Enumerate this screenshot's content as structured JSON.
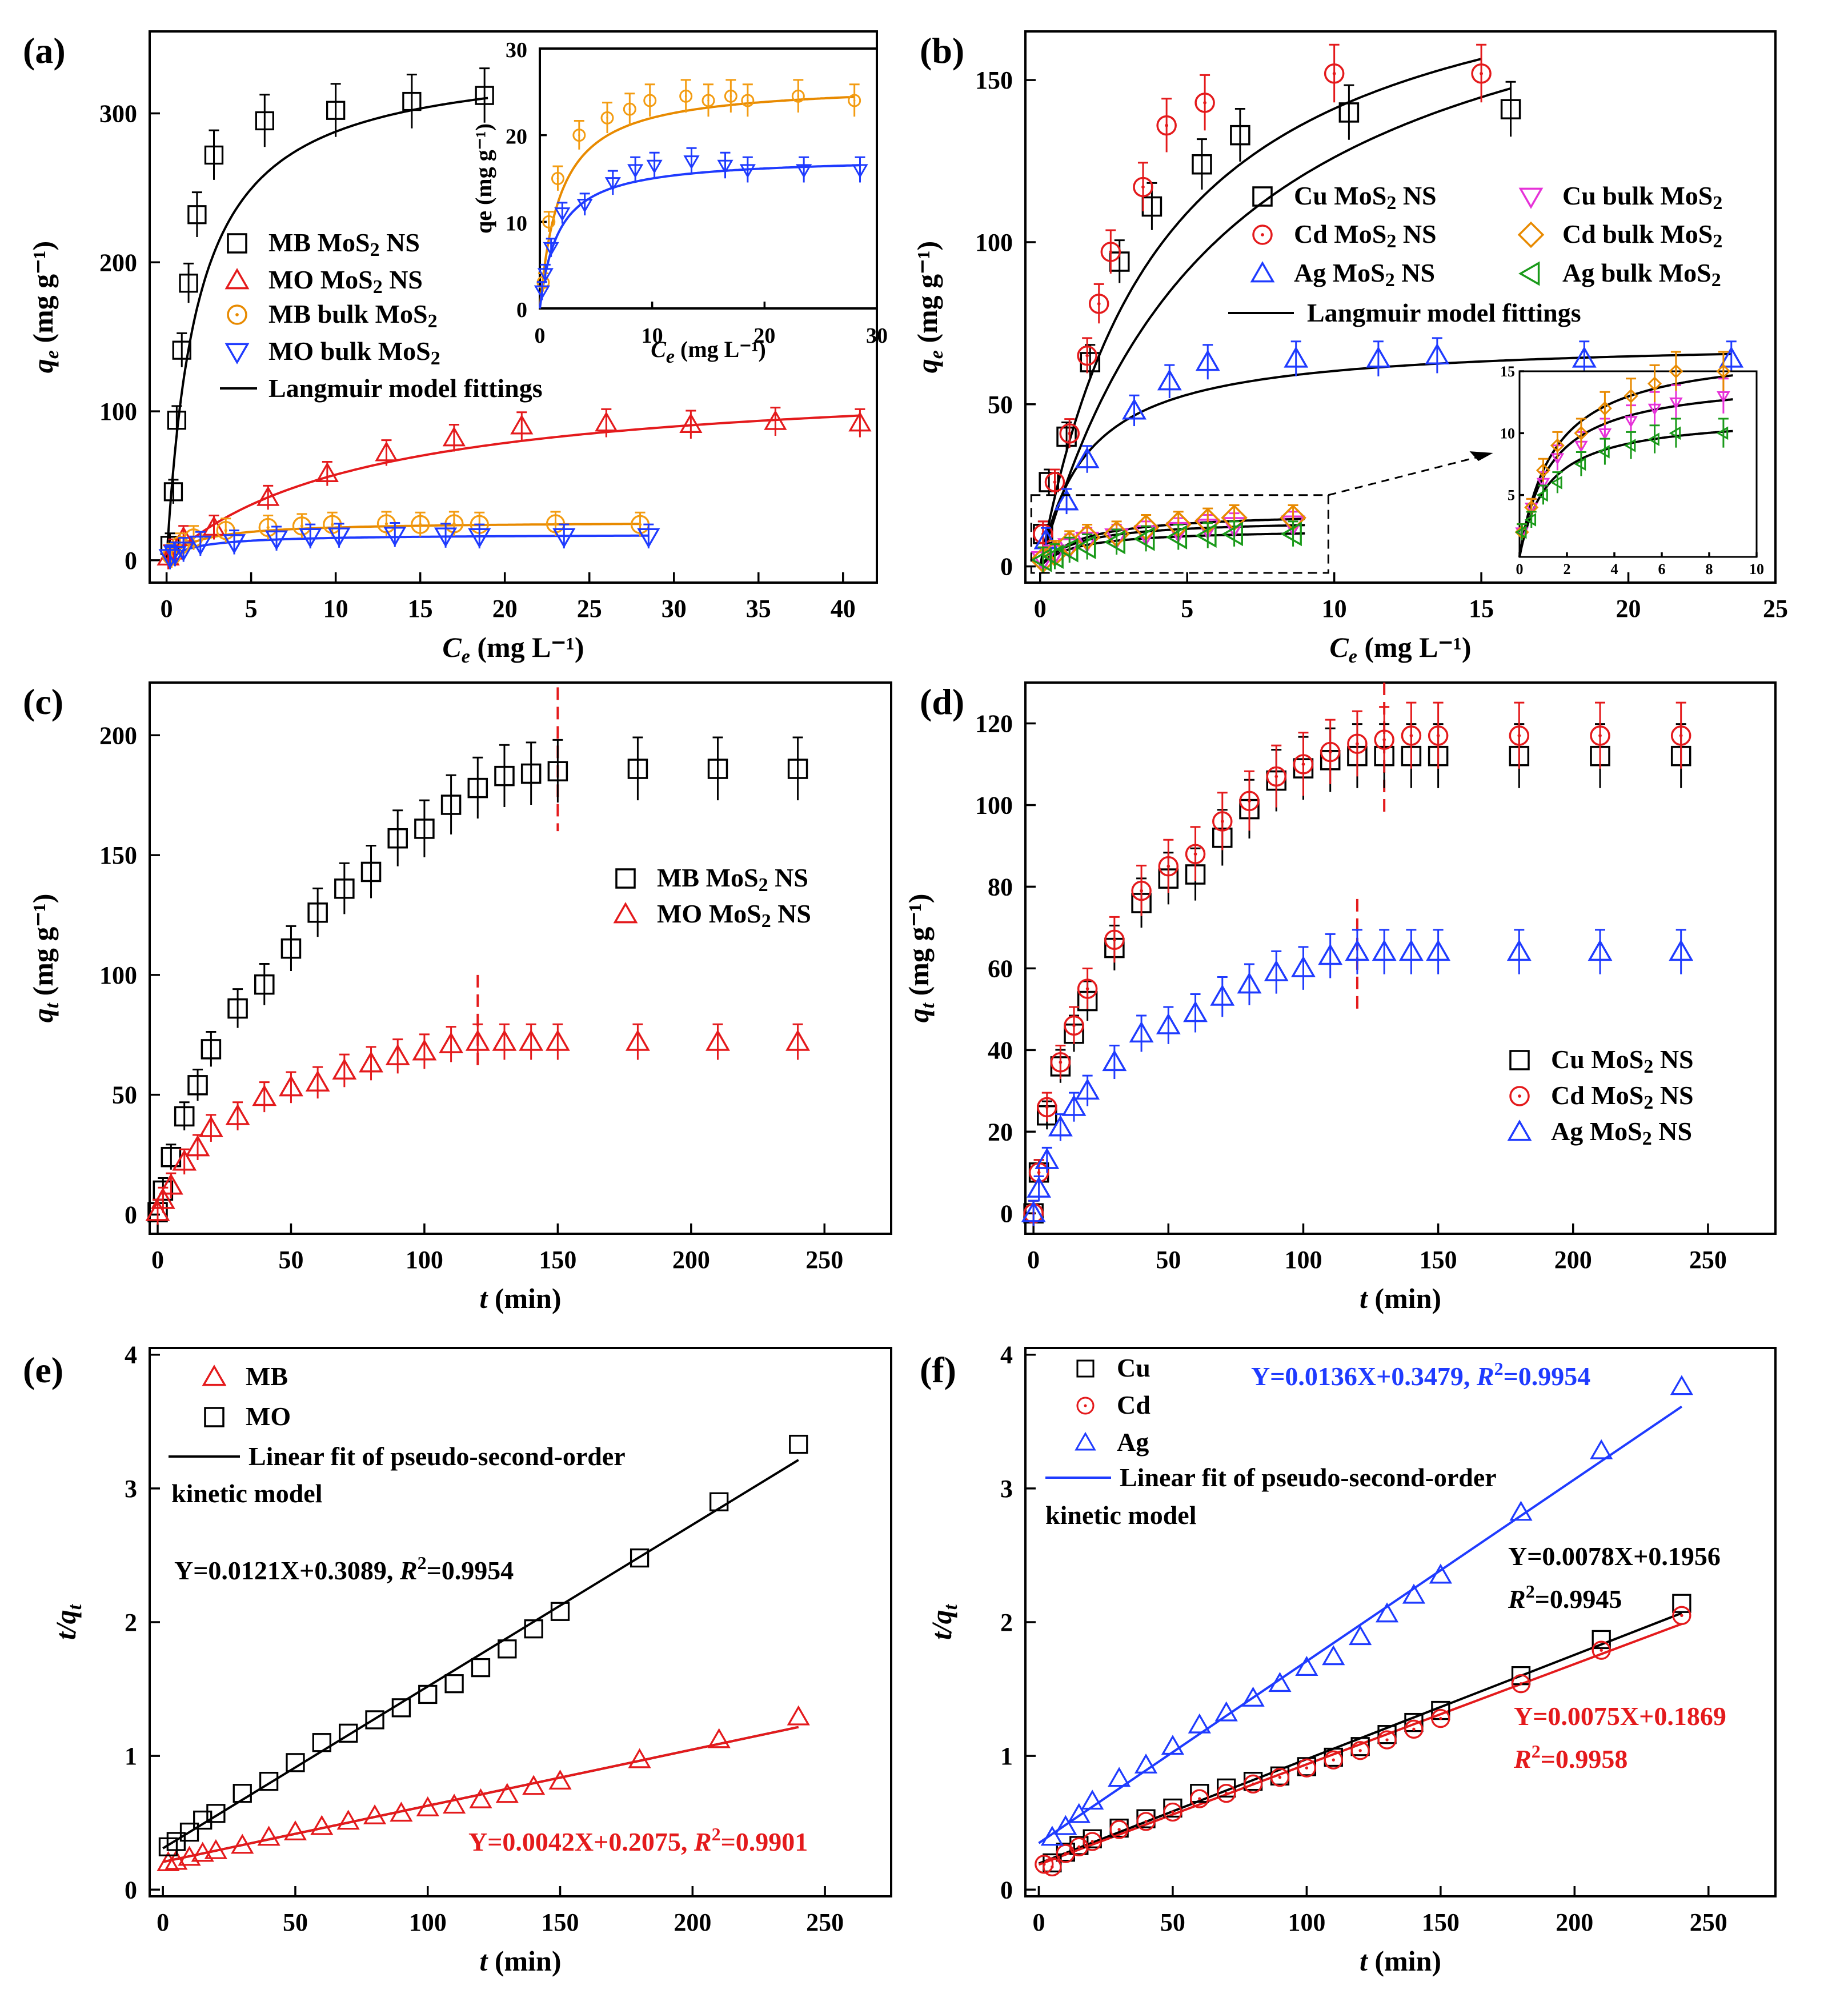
{
  "chart_data": [
    {
      "panel": "(a)",
      "type": "scatter",
      "xlabel": "Ce (mg L-1)",
      "ylabel": "qe (mg g-1)",
      "xlim": [
        -1,
        42
      ],
      "ylim": [
        -15,
        355
      ],
      "xticks": [
        0,
        5,
        10,
        15,
        20,
        25,
        30,
        35,
        40
      ],
      "yticks": [
        0,
        100,
        200,
        300
      ],
      "series": [
        {
          "name": "MB MoS2 NS",
          "marker": "square",
          "color": "#000000",
          "x": [
            0.2,
            0.4,
            0.6,
            0.9,
            1.3,
            1.8,
            2.8,
            5.8,
            10,
            14.5,
            18.8
          ],
          "y": [
            10,
            46,
            94,
            141,
            186,
            232,
            272,
            295,
            302,
            308,
            312
          ]
        },
        {
          "name": "MO MoS2 NS",
          "marker": "triangle",
          "color": "#e41a1c",
          "x": [
            0.1,
            0.4,
            1,
            2.8,
            6,
            9.5,
            13,
            17,
            21,
            26,
            31,
            36,
            41
          ],
          "y": [
            2,
            6,
            15,
            22,
            42,
            58,
            72,
            82,
            90,
            92,
            91,
            93,
            92
          ]
        },
        {
          "name": "MB bulk MoS2",
          "marker": "circle",
          "color": "#f39c12",
          "x": [
            0.3,
            0.8,
            1.6,
            3.5,
            6,
            8,
            9.8,
            13,
            15,
            17,
            18.5,
            23,
            28
          ],
          "y": [
            3,
            10,
            15,
            20,
            22,
            23,
            24,
            24.5,
            24,
            24.5,
            24,
            24.5,
            24
          ]
        },
        {
          "name": "MO bulk MoS2",
          "marker": "triangle-down",
          "color": "#1f3bff",
          "x": [
            0.2,
            0.5,
            1,
            2,
            4,
            6.5,
            8.5,
            10.2,
            13.5,
            16.5,
            18.5,
            23.5,
            28.5
          ],
          "y": [
            2,
            4,
            7,
            11,
            12,
            14.5,
            16,
            16.5,
            17,
            16.5,
            16,
            16,
            16
          ]
        }
      ],
      "fit_label": "Langmuir model fittings",
      "inset": {
        "xlabel": "Ce (mg L-1)",
        "ylabel": "qe (mg g-1)",
        "xlim": [
          0,
          30
        ],
        "ylim": [
          0,
          30
        ],
        "xticks": [
          0,
          10,
          20,
          30
        ],
        "yticks": [
          0,
          10,
          20,
          30
        ]
      }
    },
    {
      "panel": "(b)",
      "type": "scatter",
      "xlabel": "Ce (mg L-1)",
      "ylabel": "qe (mg g-1)",
      "xlim": [
        -0.5,
        25
      ],
      "ylim": [
        -5,
        165
      ],
      "xticks": [
        0,
        5,
        10,
        15,
        20,
        25
      ],
      "yticks": [
        0,
        50,
        100,
        150
      ],
      "series": [
        {
          "name": "Cu MoS2 NS",
          "marker": "square",
          "color": "#000000",
          "x": [
            0.1,
            0.3,
            0.9,
            1.7,
            2.7,
            3.8,
            5.5,
            6.8,
            10.5,
            16
          ],
          "y": [
            10,
            26,
            40,
            63,
            94,
            111,
            124,
            133,
            140,
            141
          ]
        },
        {
          "name": "Cd MoS2 NS",
          "marker": "circle",
          "color": "#e41a1c",
          "x": [
            0.1,
            0.5,
            1,
            1.6,
            2,
            2.4,
            3.5,
            4.3,
            5.6,
            10,
            15
          ],
          "y": [
            10,
            26,
            41,
            65,
            81,
            97,
            117,
            136,
            143,
            152,
            152
          ]
        },
        {
          "name": "Ag MoS2 NS",
          "marker": "triangle",
          "color": "#1f3bff",
          "x": [
            0.2,
            0.9,
            1.6,
            3.2,
            4.4,
            5.7,
            8.7,
            11.5,
            13.5,
            18.5,
            23.5
          ],
          "y": [
            8,
            20,
            33,
            48,
            57,
            63,
            64,
            64,
            65,
            64,
            64
          ]
        },
        {
          "name": "Cu bulk MoS2",
          "marker": "triangle-down",
          "color": "#e632d8",
          "x": [
            0.1,
            0.5,
            1,
            1.6,
            2.6,
            3.6,
            4.7,
            5.7,
            6.6,
            8.6
          ],
          "y": [
            2,
            4,
            6,
            8,
            9,
            10,
            11,
            12,
            12.5,
            13
          ]
        },
        {
          "name": "Cd bulk MoS2",
          "marker": "diamond",
          "color": "#e88a00",
          "x": [
            0.1,
            0.5,
            1,
            1.6,
            2.6,
            3.6,
            4.7,
            5.7,
            6.6,
            8.6
          ],
          "y": [
            2,
            4,
            7,
            9,
            10,
            12,
            13,
            14,
            15,
            15
          ]
        },
        {
          "name": "Ag bulk MoS2",
          "marker": "triangle-left",
          "color": "#1a9a1a",
          "x": [
            0.1,
            0.5,
            1,
            1.6,
            2.6,
            3.6,
            4.7,
            5.7,
            6.6,
            8.6
          ],
          "y": [
            2,
            3,
            5,
            6,
            7.5,
            8.5,
            9,
            9.5,
            10,
            10
          ]
        }
      ],
      "fit_label": "Langmuir model fittings",
      "inset": {
        "xlim": [
          0,
          10
        ],
        "ylim": [
          0,
          15
        ],
        "xticks": [
          0,
          2,
          4,
          6,
          8,
          10
        ],
        "yticks": [
          5,
          10,
          15
        ]
      }
    },
    {
      "panel": "(c)",
      "type": "scatter",
      "xlabel": "t (min)",
      "ylabel": "qt (mg g-1)",
      "xlim": [
        -3,
        275
      ],
      "ylim": [
        -8,
        222
      ],
      "xticks": [
        0,
        50,
        100,
        150,
        200,
        250
      ],
      "yticks": [
        0,
        50,
        100,
        150,
        200
      ],
      "series": [
        {
          "name": "MB MoS2 NS",
          "marker": "square",
          "color": "#000000",
          "x": [
            0,
            2,
            5,
            10,
            15,
            20,
            30,
            40,
            50,
            60,
            70,
            80,
            90,
            100,
            110,
            120,
            130,
            140,
            150,
            180,
            210,
            240
          ],
          "y": [
            1,
            10,
            24,
            41,
            54,
            69,
            86,
            96,
            111,
            126,
            136,
            143,
            157,
            161,
            171,
            178,
            183,
            184,
            185,
            186,
            186,
            186
          ]
        },
        {
          "name": "MO MoS2 NS",
          "marker": "triangle",
          "color": "#e41a1c",
          "x": [
            0,
            2,
            5,
            10,
            15,
            20,
            30,
            40,
            50,
            60,
            70,
            80,
            90,
            100,
            110,
            120,
            130,
            140,
            150,
            180,
            210,
            240
          ],
          "y": [
            1,
            6,
            12,
            22,
            28,
            36,
            41,
            49,
            53,
            55,
            60,
            63,
            66,
            68,
            71,
            72,
            72,
            72,
            72,
            72,
            72,
            72
          ]
        }
      ],
      "equilibrium_lines_x": [
        150,
        120
      ]
    },
    {
      "panel": "(d)",
      "type": "scatter",
      "xlabel": "t (min)",
      "ylabel": "qt (mg g-1)",
      "xlim": [
        -3,
        275
      ],
      "ylim": [
        -5,
        130
      ],
      "xticks": [
        0,
        50,
        100,
        150,
        200,
        250
      ],
      "yticks": [
        0,
        20,
        40,
        60,
        80,
        100,
        120
      ],
      "series": [
        {
          "name": "Cu MoS2 NS",
          "marker": "square",
          "color": "#000000",
          "x": [
            0,
            2,
            5,
            10,
            15,
            20,
            30,
            40,
            50,
            60,
            70,
            80,
            90,
            100,
            110,
            120,
            130,
            140,
            150,
            180,
            210,
            240
          ],
          "y": [
            0,
            10,
            24,
            36,
            44,
            52,
            65,
            76,
            82,
            83,
            92,
            99,
            106,
            109,
            111,
            112,
            112,
            112,
            112,
            112,
            112,
            112
          ]
        },
        {
          "name": "Cd MoS2 NS",
          "marker": "circle",
          "color": "#e41a1c",
          "x": [
            0,
            2,
            5,
            10,
            15,
            20,
            30,
            40,
            50,
            60,
            70,
            80,
            90,
            100,
            110,
            120,
            130,
            140,
            150,
            180,
            210,
            240
          ],
          "y": [
            0,
            10,
            26,
            37,
            46,
            55,
            67,
            79,
            85,
            88,
            96,
            101,
            107,
            110,
            113,
            115,
            116,
            117,
            117,
            117,
            117,
            117
          ]
        },
        {
          "name": "Ag MoS2 NS",
          "marker": "triangle",
          "color": "#1f3bff",
          "x": [
            0,
            2,
            5,
            10,
            15,
            20,
            30,
            40,
            50,
            60,
            70,
            80,
            90,
            100,
            110,
            120,
            130,
            140,
            150,
            180,
            210,
            240
          ],
          "y": [
            0,
            6,
            13,
            21,
            26,
            30,
            37,
            44,
            46,
            49,
            53,
            56,
            59,
            60,
            63,
            64,
            64,
            64,
            64,
            64,
            64,
            64
          ]
        }
      ],
      "equilibrium_lines_x": [
        130,
        120
      ]
    },
    {
      "panel": "(e)",
      "type": "scatter",
      "xlabel": "t (min)",
      "ylabel": "t/qt",
      "xlim": [
        -5,
        275
      ],
      "ylim": [
        -0.05,
        4.05
      ],
      "xticks": [
        0,
        50,
        100,
        150,
        200,
        250
      ],
      "yticks": [
        0,
        1,
        2,
        3,
        4
      ],
      "series": [
        {
          "name": "MB",
          "marker": "triangle",
          "color": "#e41a1c",
          "x": [
            2,
            5,
            10,
            15,
            20,
            30,
            40,
            50,
            60,
            70,
            80,
            90,
            100,
            110,
            120,
            130,
            140,
            150,
            180,
            210,
            240
          ],
          "y": [
            0.2,
            0.21,
            0.24,
            0.27,
            0.29,
            0.33,
            0.39,
            0.43,
            0.47,
            0.51,
            0.55,
            0.57,
            0.61,
            0.63,
            0.67,
            0.71,
            0.77,
            0.81,
            0.97,
            1.12,
            1.29
          ],
          "fit": {
            "slope": 0.0042,
            "intercept": 0.2075
          }
        },
        {
          "name": "MO",
          "marker": "square",
          "color": "#000000",
          "x": [
            2,
            5,
            10,
            15,
            20,
            30,
            40,
            50,
            60,
            70,
            80,
            90,
            100,
            110,
            120,
            130,
            140,
            150,
            180,
            210,
            240
          ],
          "y": [
            0.32,
            0.36,
            0.43,
            0.52,
            0.57,
            0.72,
            0.81,
            0.95,
            1.1,
            1.17,
            1.27,
            1.36,
            1.46,
            1.54,
            1.66,
            1.8,
            1.95,
            2.08,
            2.48,
            2.9,
            3.33
          ],
          "fit": {
            "slope": 0.0121,
            "intercept": 0.3089
          }
        }
      ],
      "fit_legend": [
        "Linear fit of pseudo-second-order",
        "kinetic model"
      ],
      "equations": [
        "Y=0.0121X+0.3089, R2=0.9954",
        "Y=0.0042X+0.2075, R2=0.9901"
      ]
    },
    {
      "panel": "(f)",
      "type": "scatter",
      "xlabel": "t (min)",
      "ylabel": "t/qt",
      "xlim": [
        -5,
        275
      ],
      "ylim": [
        -0.05,
        4.05
      ],
      "xticks": [
        0,
        50,
        100,
        150,
        200,
        250
      ],
      "yticks": [
        0,
        1,
        2,
        3,
        4
      ],
      "series": [
        {
          "name": "Cu",
          "marker": "square",
          "color": "#000000",
          "x": [
            5,
            10,
            15,
            20,
            30,
            40,
            50,
            60,
            70,
            80,
            90,
            100,
            110,
            120,
            130,
            140,
            150,
            180,
            210,
            240
          ],
          "y": [
            0.2,
            0.28,
            0.33,
            0.38,
            0.46,
            0.53,
            0.61,
            0.72,
            0.76,
            0.81,
            0.85,
            0.92,
            0.99,
            1.07,
            1.16,
            1.25,
            1.34,
            1.6,
            1.87,
            2.14
          ],
          "fit": {
            "slope": 0.0078,
            "intercept": 0.1956
          }
        },
        {
          "name": "Cd",
          "marker": "circle",
          "color": "#e41a1c",
          "x": [
            2,
            5,
            10,
            15,
            20,
            30,
            40,
            50,
            60,
            70,
            80,
            90,
            100,
            110,
            120,
            130,
            140,
            150,
            180,
            210,
            240
          ],
          "y": [
            0.19,
            0.17,
            0.27,
            0.32,
            0.36,
            0.45,
            0.51,
            0.58,
            0.68,
            0.72,
            0.79,
            0.84,
            0.91,
            0.97,
            1.04,
            1.12,
            1.2,
            1.28,
            1.54,
            1.79,
            2.05
          ],
          "fit": {
            "slope": 0.0075,
            "intercept": 0.1869
          }
        },
        {
          "name": "Ag",
          "marker": "triangle",
          "color": "#1f3bff",
          "x": [
            5,
            10,
            15,
            20,
            30,
            40,
            50,
            60,
            70,
            80,
            90,
            100,
            110,
            120,
            130,
            140,
            150,
            180,
            210,
            240
          ],
          "y": [
            0.39,
            0.47,
            0.56,
            0.66,
            0.83,
            0.93,
            1.07,
            1.23,
            1.32,
            1.43,
            1.54,
            1.66,
            1.74,
            1.89,
            2.06,
            2.2,
            2.35,
            2.82,
            3.28,
            3.76
          ],
          "fit": {
            "slope": 0.0136,
            "intercept": 0.3479
          }
        }
      ],
      "fit_legend": [
        "Linear fit of pseudo-second-order",
        "kinetic model"
      ],
      "equations": [
        "Y=0.0136X+0.3479, R2=0.9954",
        "Y=0.0078X+0.1956",
        "R2=0.9945",
        "Y=0.0075X+0.1869",
        "R2=0.9958"
      ]
    }
  ]
}
